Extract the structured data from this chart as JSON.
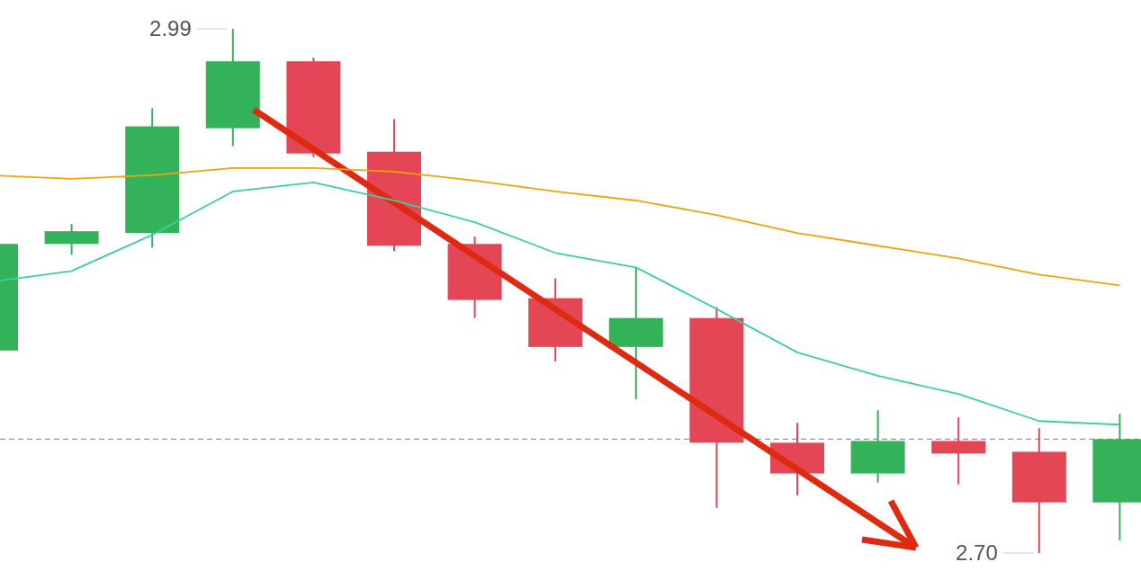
{
  "chart_data": {
    "type": "candlestick",
    "categories": [
      null,
      null,
      null,
      null,
      null,
      null,
      null,
      null,
      null,
      null,
      null,
      null,
      null,
      null,
      null
    ],
    "ohlc": [
      [
        2.812,
        2.871,
        2.812,
        2.871
      ],
      [
        2.871,
        2.882,
        2.865,
        2.878
      ],
      [
        2.877,
        2.946,
        2.869,
        2.936
      ],
      [
        2.935,
        2.99,
        2.925,
        2.972
      ],
      [
        2.972,
        2.974,
        2.919,
        2.921
      ],
      [
        2.922,
        2.94,
        2.867,
        2.87
      ],
      [
        2.871,
        2.875,
        2.83,
        2.84
      ],
      [
        2.841,
        2.852,
        2.806,
        2.814
      ],
      [
        2.814,
        2.858,
        2.785,
        2.83
      ],
      [
        2.83,
        2.836,
        2.725,
        2.761
      ],
      [
        2.761,
        2.772,
        2.732,
        2.744
      ],
      [
        2.744,
        2.779,
        2.739,
        2.762
      ],
      [
        2.762,
        2.775,
        2.738,
        2.755
      ],
      [
        2.756,
        2.769,
        2.7,
        2.728
      ],
      [
        2.728,
        2.777,
        2.707,
        2.763
      ]
    ],
    "colors": [
      "#34b25a",
      "#34b25a",
      "#34b25a",
      "#34b25a",
      "#e44655",
      "#e44655",
      "#e44655",
      "#e44655",
      "#34b25a",
      "#e44655",
      "#e44655",
      "#34b25a",
      "#e44655",
      "#e44655",
      "#34b25a"
    ],
    "series": [
      {
        "type": "line",
        "color": "#3ccdaa",
        "values": [
          2.85,
          2.856,
          2.876,
          2.9,
          2.905,
          2.895,
          2.883,
          2.866,
          2.858,
          2.835,
          2.811,
          2.798,
          2.788,
          2.773,
          2.771
        ]
      },
      {
        "type": "line",
        "color": "#f0a30a",
        "values": [
          2.909,
          2.907,
          2.909,
          2.913,
          2.913,
          2.911,
          2.906,
          2.9,
          2.895,
          2.887,
          2.877,
          2.87,
          2.863,
          2.854,
          2.848
        ]
      }
    ],
    "ref_lines": [
      {
        "axis": "y",
        "value": 2.763,
        "color": "#999999",
        "line_style": "dashed"
      }
    ],
    "annotations": [
      "2.99",
      "2.70"
    ]
  }
}
